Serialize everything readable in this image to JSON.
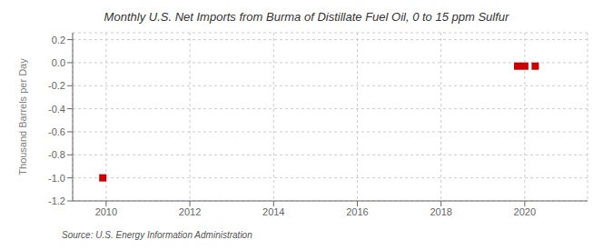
{
  "chart_data": {
    "type": "scatter",
    "title": "Monthly U.S. Net Imports from Burma of Distillate Fuel Oil, 0 to 15 ppm Sulfur",
    "ylabel": "Thousand Barrels per Day",
    "annotations": [
      "Source: U.S. Energy Information Administration"
    ],
    "x": [
      2009.92,
      2019.83,
      2020.0,
      2020.25
    ],
    "values": [
      -1.0,
      -0.03,
      -0.03,
      -0.03
    ],
    "color": "#cc0000",
    "marker": "square",
    "xlim": [
      2009.2,
      2021.5
    ],
    "ylim": [
      -1.2,
      0.26
    ],
    "xticks": [
      2010,
      2012,
      2014,
      2016,
      2018,
      2020
    ],
    "yticks": [
      0.2,
      {
        "value": 0,
        "label": "0.0"
      },
      -0.2,
      -0.4,
      -0.6,
      -0.8,
      {
        "value": -1.0,
        "label": "-1.0"
      },
      -1.2
    ],
    "grid": true
  }
}
